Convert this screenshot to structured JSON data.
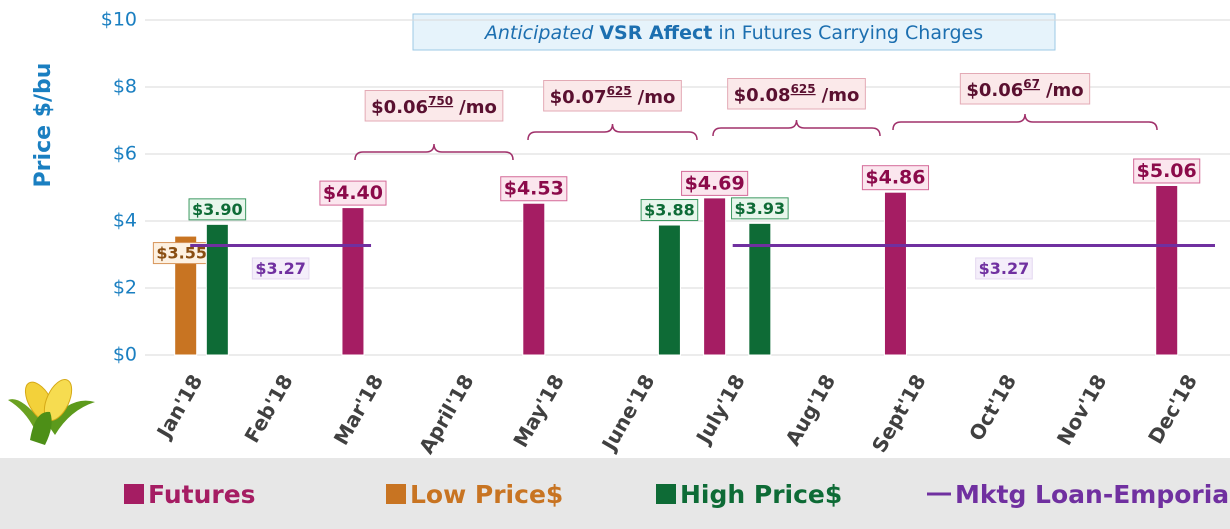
{
  "chart_data": {
    "type": "bar",
    "title": {
      "italic": "Anticipated",
      "bold": "VSR Affect",
      "rest": "in Futures Carrying Charges"
    },
    "y_label": "Price $/bu",
    "categories": [
      "Jan'18",
      "Feb'18",
      "Mar'18",
      "April'18",
      "May'18",
      "June'18",
      "July'18",
      "Aug'18",
      "Sept'18",
      "Oct'18",
      "Nov'18",
      "Dec'18"
    ],
    "series": [
      {
        "name": "Futures",
        "type": "bar",
        "color": "#a51d63",
        "values": [
          null,
          null,
          4.4,
          null,
          4.53,
          null,
          4.69,
          null,
          4.86,
          null,
          null,
          5.06
        ],
        "value_labels": [
          null,
          null,
          "$4.40",
          null,
          "$4.53",
          null,
          "$4.69",
          null,
          "$4.86",
          null,
          null,
          "$5.06"
        ]
      },
      {
        "name": "Low Price$",
        "type": "bar",
        "color": "#c87422",
        "values": [
          3.55,
          null,
          null,
          null,
          null,
          null,
          null,
          null,
          null,
          null,
          null,
          null
        ],
        "value_labels": [
          "$3.55",
          null,
          null,
          null,
          null,
          null,
          null,
          null,
          null,
          null,
          null,
          null
        ]
      },
      {
        "name": "High Price$",
        "type": "bar",
        "color": "#0e6b36",
        "values": [
          3.9,
          null,
          null,
          null,
          null,
          3.88,
          3.93,
          null,
          null,
          null,
          null,
          null
        ],
        "value_labels": [
          "$3.90",
          null,
          null,
          null,
          null,
          "$3.88",
          "$3.93",
          null,
          null,
          null,
          null,
          null
        ]
      },
      {
        "name": "Mktg Loan-Emporia",
        "type": "line",
        "color": "#7030a0",
        "values": [
          3.27,
          3.27,
          3.27,
          null,
          null,
          null,
          3.27,
          3.27,
          3.27,
          3.27,
          3.27,
          3.27
        ],
        "value_labels": [
          null,
          "$3.27",
          null,
          null,
          null,
          null,
          null,
          null,
          null,
          "$3.27",
          null,
          null
        ]
      }
    ],
    "ylim": [
      0,
      10
    ],
    "yticks": [
      {
        "value": 0,
        "label": "$0"
      },
      {
        "value": 2,
        "label": "$2"
      },
      {
        "value": 4,
        "label": "$4"
      },
      {
        "value": 6,
        "label": "$6"
      },
      {
        "value": 8,
        "label": "$8"
      },
      {
        "value": 10,
        "label": "$10"
      }
    ],
    "grid": true,
    "annotations": [
      {
        "text": "$0.06",
        "sup": "750",
        "suffix": "/mo"
      },
      {
        "text": "$0.07",
        "sup": "625",
        "suffix": "/mo"
      },
      {
        "text": "$0.08",
        "sup": "625",
        "suffix": "/mo"
      },
      {
        "text": "$0.06",
        "sup": "67",
        "suffix": "/mo"
      }
    ]
  }
}
